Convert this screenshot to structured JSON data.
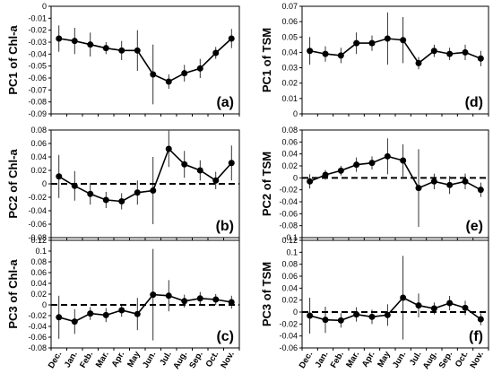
{
  "months": [
    "Dec.",
    "Jan.",
    "Feb.",
    "Mar.",
    "Apr.",
    "May",
    "Jun.",
    "Jul.",
    "Aug.",
    "Sep.",
    "Oct.",
    "Nov."
  ],
  "chart_data": [
    {
      "type": "line",
      "panel": "(a)",
      "ylabel": "PC1 of Chl-a",
      "ylim": [
        -0.09,
        0
      ],
      "ticks": [
        0,
        -0.01,
        -0.02,
        -0.03,
        -0.04,
        -0.05,
        -0.06,
        -0.07,
        -0.08,
        -0.09
      ],
      "tick_labels": [
        "0",
        "-0.01",
        "-0.02",
        "-0.03",
        "-0.04",
        "-0.05",
        "-0.06",
        "-0.07",
        "-0.08",
        "-0.09"
      ],
      "zero_line": false,
      "values": [
        -0.027,
        -0.029,
        -0.032,
        -0.035,
        -0.037,
        -0.037,
        -0.057,
        -0.063,
        -0.056,
        -0.052,
        -0.039,
        -0.027
      ],
      "errors": [
        0.011,
        0.011,
        0.01,
        0.005,
        0.008,
        0.017,
        0.025,
        0.006,
        0.007,
        0.008,
        0.005,
        0.008
      ]
    },
    {
      "type": "line",
      "panel": "(b)",
      "ylabel": "PC2 of Chl-a",
      "ylim": [
        -0.08,
        0.08
      ],
      "ticks": [
        0.08,
        0.06,
        0.04,
        0.02,
        0,
        -0.02,
        -0.04,
        -0.06,
        -0.08
      ],
      "tick_labels": [
        "0.08",
        "0.06",
        "0.04",
        "0.02",
        "0",
        "-0.02",
        "-0.04",
        "-0.06",
        "-0.08"
      ],
      "zero_line": true,
      "values": [
        0.011,
        -0.003,
        -0.015,
        -0.024,
        -0.026,
        -0.013,
        -0.01,
        0.052,
        0.029,
        0.02,
        0.005,
        0.031
      ],
      "errors": [
        0.032,
        0.022,
        0.016,
        0.012,
        0.012,
        0.018,
        0.05,
        0.027,
        0.02,
        0.015,
        0.013,
        0.026
      ]
    },
    {
      "type": "line",
      "panel": "(c)",
      "ylabel": "PC3 of Chl-a",
      "ylim": [
        -0.08,
        0.12
      ],
      "ticks": [
        0.12,
        0.1,
        0.08,
        0.06,
        0.04,
        0.02,
        0,
        -0.02,
        -0.04,
        -0.06,
        -0.08
      ],
      "tick_labels": [
        "0.12",
        "0.1",
        "0.08",
        "0.06",
        "0.04",
        "0.02",
        "0",
        "-0.02",
        "-0.04",
        "-0.06",
        "-0.08"
      ],
      "zero_line": true,
      "values": [
        -0.023,
        -0.031,
        -0.016,
        -0.019,
        -0.01,
        -0.017,
        0.019,
        0.017,
        0.007,
        0.012,
        0.01,
        0.005
      ],
      "errors": [
        0.04,
        0.023,
        0.012,
        0.013,
        0.012,
        0.03,
        0.085,
        0.029,
        0.012,
        0.012,
        0.01,
        0.012
      ]
    },
    {
      "type": "line",
      "panel": "(d)",
      "ylabel": "PC1 of TSM",
      "ylim": [
        0,
        0.07
      ],
      "ticks": [
        0.07,
        0.06,
        0.05,
        0.04,
        0.03,
        0.02,
        0.01,
        0
      ],
      "tick_labels": [
        "0.07",
        "0.06",
        "0.05",
        "0.04",
        "0.03",
        "0.02",
        "0.01",
        "0"
      ],
      "zero_line": false,
      "values": [
        0.041,
        0.039,
        0.038,
        0.046,
        0.046,
        0.049,
        0.048,
        0.033,
        0.041,
        0.039,
        0.04,
        0.036
      ],
      "errors": [
        0.009,
        0.005,
        0.005,
        0.007,
        0.005,
        0.017,
        0.015,
        0.004,
        0.004,
        0.004,
        0.005,
        0.005
      ]
    },
    {
      "type": "line",
      "panel": "(e)",
      "ylabel": "PC2 of TSM",
      "ylim": [
        -0.1,
        0.08
      ],
      "ticks": [
        0.08,
        0.06,
        0.04,
        0.02,
        0,
        -0.02,
        -0.04,
        -0.06,
        -0.08,
        -0.1
      ],
      "tick_labels": [
        "0.08",
        "0.06",
        "0.04",
        "0.02",
        "0",
        "-0.02",
        "-0.04",
        "-0.06",
        "-0.08",
        "-0.1"
      ],
      "zero_line": true,
      "values": [
        -0.006,
        0.005,
        0.012,
        0.022,
        0.025,
        0.036,
        0.029,
        -0.017,
        -0.006,
        -0.012,
        -0.006,
        -0.02
      ],
      "errors": [
        0.012,
        0.008,
        0.008,
        0.012,
        0.011,
        0.03,
        0.027,
        0.065,
        0.013,
        0.015,
        0.013,
        0.012
      ]
    },
    {
      "type": "line",
      "panel": "(f)",
      "ylabel": "PC3 of TSM",
      "ylim": [
        -0.06,
        0.12
      ],
      "ticks": [
        0.12,
        0.1,
        0.08,
        0.06,
        0.04,
        0.02,
        0,
        -0.02,
        -0.04,
        -0.06
      ],
      "tick_labels": [
        "0.12",
        "0.1",
        "0.08",
        "0.06",
        "0.04",
        "0.02",
        "0",
        "-0.02",
        "-0.04",
        "-0.06"
      ],
      "zero_line": true,
      "values": [
        -0.006,
        -0.013,
        -0.014,
        -0.004,
        -0.008,
        -0.005,
        0.024,
        0.011,
        0.006,
        0.015,
        0.007,
        -0.012
      ],
      "errors": [
        0.03,
        0.022,
        0.012,
        0.012,
        0.012,
        0.018,
        0.07,
        0.02,
        0.01,
        0.012,
        0.012,
        0.01
      ]
    }
  ]
}
